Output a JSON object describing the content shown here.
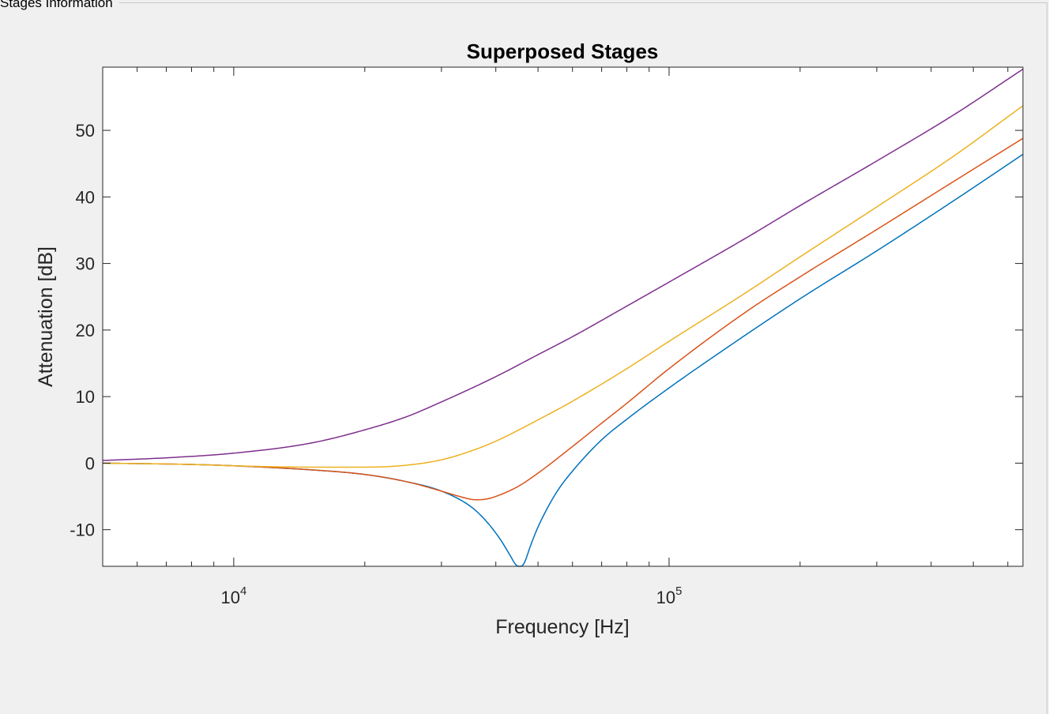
{
  "panel": {
    "title": "Stages Information"
  },
  "chart_data": {
    "type": "line",
    "title": "Superposed Stages",
    "xlabel": "Frequency [Hz]",
    "ylabel": "Attenuation [dB]",
    "xscale": "log",
    "xlim": [
      5000,
      650000
    ],
    "ylim": [
      -15.5,
      59.5
    ],
    "grid": false,
    "legend": "none",
    "x_ticks": [
      {
        "value": 10000,
        "base": "10",
        "exp": "4"
      },
      {
        "value": 100000,
        "base": "10",
        "exp": "5"
      }
    ],
    "y_ticks": [
      -10,
      0,
      10,
      20,
      30,
      40,
      50
    ],
    "series": [
      {
        "color": "#0072BD",
        "x": [
          5000,
          8000,
          10000,
          15000,
          20000,
          25000,
          30000,
          35000,
          38000,
          41000,
          43000,
          44500,
          45500,
          46500,
          48000,
          50000,
          55000,
          60000,
          70000,
          80000,
          100000,
          130000,
          200000,
          300000,
          450000,
          650000
        ],
        "y": [
          0,
          -0.2,
          -0.4,
          -1.0,
          -1.7,
          -2.8,
          -4.2,
          -6.5,
          -8.7,
          -11.5,
          -13.7,
          -15.3,
          -15.6,
          -15.0,
          -12.5,
          -9.6,
          -4.5,
          -1.2,
          3.5,
          6.6,
          11.3,
          16.5,
          24.7,
          31.9,
          39.4,
          46.4
        ]
      },
      {
        "color": "#D95319",
        "x": [
          5000,
          8000,
          10000,
          15000,
          20000,
          25000,
          30000,
          33000,
          36000,
          38000,
          40000,
          45000,
          50000,
          60000,
          70000,
          80000,
          100000,
          150000,
          200000,
          300000,
          450000,
          650000
        ],
        "y": [
          0,
          -0.2,
          -0.4,
          -1.0,
          -1.7,
          -2.8,
          -4.2,
          -5.0,
          -5.5,
          -5.4,
          -5.0,
          -3.5,
          -1.5,
          2.5,
          6.0,
          9.0,
          14.2,
          22.7,
          28.0,
          35.1,
          42.3,
          48.8
        ]
      },
      {
        "color": "#EDB120",
        "x": [
          5000,
          8000,
          10000,
          15000,
          20000,
          25000,
          30000,
          35000,
          40000,
          50000,
          60000,
          80000,
          100000,
          150000,
          200000,
          300000,
          450000,
          650000
        ],
        "y": [
          0,
          -0.2,
          -0.4,
          -0.6,
          -0.6,
          -0.3,
          0.5,
          1.8,
          3.3,
          6.5,
          9.3,
          14.2,
          18.3,
          25.6,
          31.0,
          38.5,
          46.1,
          53.7
        ]
      },
      {
        "color": "#7E2F8E",
        "x": [
          5000,
          7000,
          10000,
          15000,
          20000,
          25000,
          30000,
          40000,
          50000,
          60000,
          80000,
          100000,
          150000,
          200000,
          300000,
          450000,
          650000
        ],
        "y": [
          0.4,
          0.8,
          1.5,
          3.0,
          5.0,
          7.0,
          9.2,
          13.0,
          16.3,
          19.0,
          23.6,
          27.2,
          33.8,
          38.7,
          45.4,
          52.3,
          59.2
        ]
      }
    ]
  }
}
